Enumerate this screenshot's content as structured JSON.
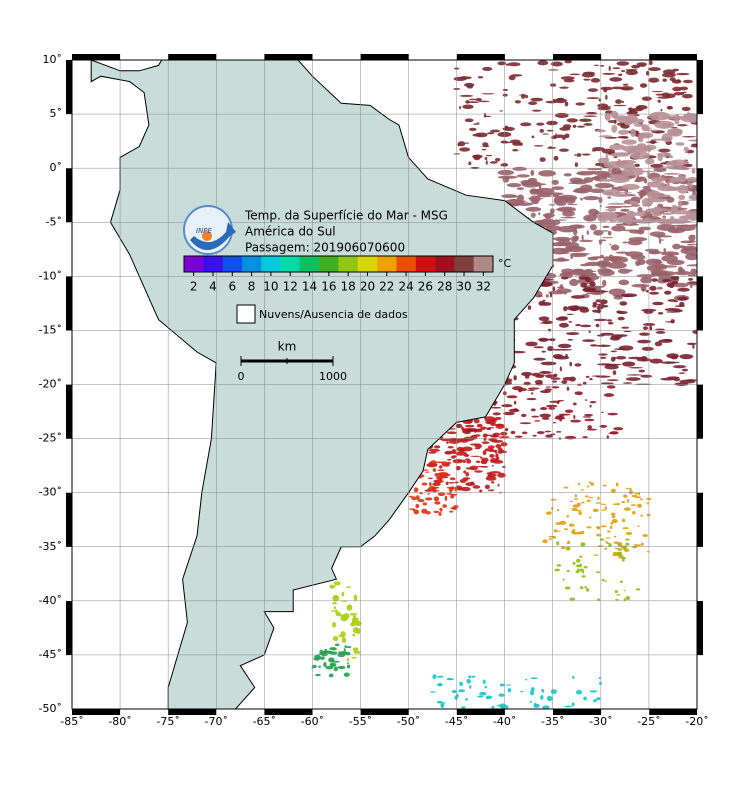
{
  "map": {
    "title_lines": [
      "Temp. da Superfície do Mar - MSG",
      "América do Sul",
      "Passagem: 201906070600"
    ],
    "logo_text": "INPE",
    "xlim": [
      -85,
      -20
    ],
    "ylim": [
      -50,
      10
    ],
    "xticks": [
      {
        "value": -85,
        "label": "-85˚"
      },
      {
        "value": -80,
        "label": "-80˚"
      },
      {
        "value": -75,
        "label": "-75˚"
      },
      {
        "value": -70,
        "label": "-70˚"
      },
      {
        "value": -65,
        "label": "-65˚"
      },
      {
        "value": -60,
        "label": "-60˚"
      },
      {
        "value": -55,
        "label": "-55˚"
      },
      {
        "value": -50,
        "label": "-50˚"
      },
      {
        "value": -45,
        "label": "-45˚"
      },
      {
        "value": -40,
        "label": "-40˚"
      },
      {
        "value": -35,
        "label": "-35˚"
      },
      {
        "value": -30,
        "label": "-30˚"
      },
      {
        "value": -25,
        "label": "-25˚"
      },
      {
        "value": -20,
        "label": "-20˚"
      }
    ],
    "yticks": [
      {
        "value": 10,
        "label": "10˚"
      },
      {
        "value": 5,
        "label": "5˚"
      },
      {
        "value": 0,
        "label": "0˚"
      },
      {
        "value": -5,
        "label": "-5˚"
      },
      {
        "value": -10,
        "label": "-10˚"
      },
      {
        "value": -15,
        "label": "-15˚"
      },
      {
        "value": -20,
        "label": "-20˚"
      },
      {
        "value": -25,
        "label": "-25˚"
      },
      {
        "value": -30,
        "label": "-30˚"
      },
      {
        "value": -35,
        "label": "-35˚"
      },
      {
        "value": -40,
        "label": "-40˚"
      },
      {
        "value": -45,
        "label": "-45˚"
      },
      {
        "value": -50,
        "label": "-50˚"
      }
    ],
    "grid": true,
    "colorbar": {
      "lim": [
        1,
        33
      ],
      "ticks": [
        2,
        4,
        6,
        8,
        10,
        12,
        14,
        16,
        18,
        20,
        22,
        24,
        26,
        28,
        30,
        32
      ],
      "unit": "°C",
      "colors": [
        "#7a00d8",
        "#3a10f0",
        "#1050f0",
        "#0090e0",
        "#00c8d8",
        "#00d8a8",
        "#10c060",
        "#40b020",
        "#90c810",
        "#d8d800",
        "#f0a000",
        "#e85000",
        "#d01010",
        "#a01020",
        "#804040",
        "#b08888"
      ]
    },
    "legend_label": "Nuvens/Ausencia de dados",
    "scale": {
      "unit": "km",
      "labels": [
        "0",
        "1000"
      ]
    }
  }
}
